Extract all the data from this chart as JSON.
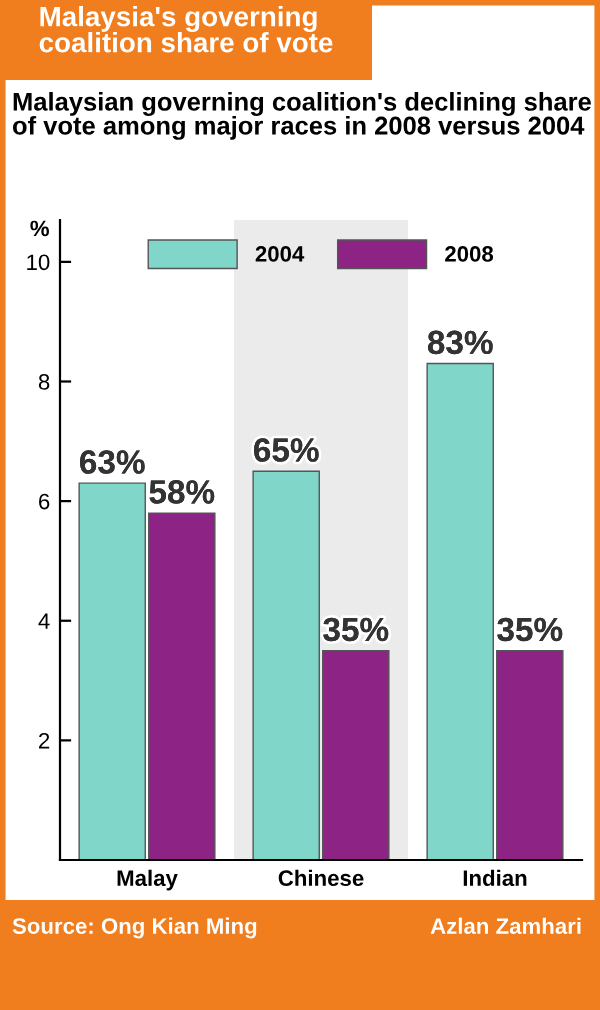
{
  "chart_data": {
    "type": "bar",
    "title": "Malaysia's governing coalition share of vote",
    "subtitle": "Malaysian governing coalition's declining share of vote among major races in 2008 versus 2004",
    "ylabel": "%",
    "categories": [
      "Malay",
      "Chinese",
      "Indian"
    ],
    "series": [
      {
        "name": "2004",
        "color": "#7fd6c9",
        "values": [
          6.3,
          6.5,
          8.3
        ]
      },
      {
        "name": "2008",
        "color": "#8e2386",
        "values": [
          5.8,
          3.5,
          3.5
        ]
      }
    ],
    "ylim": [
      0,
      10.7
    ],
    "yticks": [
      2,
      4,
      6,
      8,
      10
    ],
    "bands": [
      {
        "axis": "x",
        "from": "Chinese",
        "to": "Chinese",
        "color": "#ebebeb"
      }
    ],
    "legend": "top",
    "grid": false,
    "annotations": [
      "Source: Ong Kian Ming",
      "Azlan Zamhari",
      {
        "text": "63%",
        "x": "Malay",
        "y": 6.3
      },
      {
        "text": "58%",
        "x": "Malay",
        "y": 5.8
      },
      {
        "text": "65%",
        "x": "Chinese",
        "y": 6.5
      },
      {
        "text": "35%",
        "x": "Chinese",
        "y": 3.5
      },
      {
        "text": "83%",
        "x": "Indian",
        "y": 8.3
      },
      {
        "text": "35%",
        "x": "Indian",
        "y": 3.5
      }
    ]
  }
}
